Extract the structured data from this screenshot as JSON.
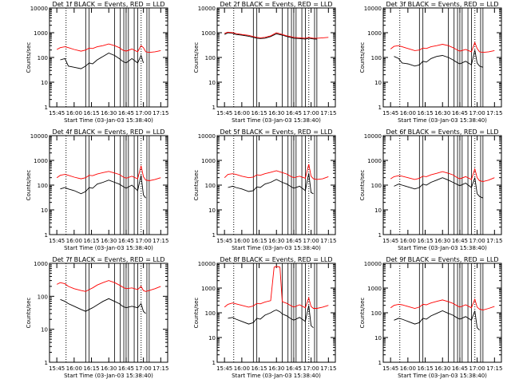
{
  "figure": {
    "background": "#ffffff",
    "axis_color": "#000000",
    "events_color": "#000000",
    "lld_color": "#ff0000"
  },
  "chart_data": [
    {
      "type": "line",
      "title": "Det 1f BLACK = Events, RED = LLD",
      "xlabel": "Start Time (03-Jan-03 15:38:40)",
      "ylabel": "Counts/sec",
      "yscale": "log",
      "ylim": [
        1,
        10000
      ],
      "x_ticks": [
        "15:45",
        "16:00",
        "16:15",
        "16:30",
        "16:45",
        "17:00",
        "17:15"
      ],
      "y_ticks": [
        "1",
        "10",
        "100",
        "1000",
        "10000"
      ],
      "times": [
        "15:39",
        "15:45",
        "15:48",
        "15:52",
        "15:55",
        "16:00",
        "16:06",
        "16:10",
        "16:13",
        "16:16",
        "16:20",
        "16:25",
        "16:30",
        "16:35",
        "16:39",
        "16:42",
        "16:45",
        "16:50",
        "16:55",
        "16:58",
        "17:00",
        "17:02",
        "17:05",
        "17:10",
        "17:15"
      ],
      "series": [
        {
          "name": "Events",
          "color": "#000000",
          "values": [
            null,
            null,
            80,
            90,
            45,
            40,
            35,
            45,
            60,
            55,
            80,
            110,
            150,
            120,
            90,
            70,
            60,
            90,
            60,
            120,
            60,
            null,
            null,
            null,
            null
          ]
        },
        {
          "name": "LLD",
          "color": "#ff0000",
          "values": [
            null,
            210,
            250,
            270,
            250,
            210,
            180,
            200,
            240,
            230,
            270,
            300,
            350,
            300,
            250,
            200,
            180,
            220,
            170,
            300,
            250,
            170,
            160,
            170,
            190
          ]
        }
      ]
    },
    {
      "type": "line",
      "title": "Det 2f BLACK = Events, RED = LLD",
      "xlabel": "Start Time (03-Jan-03 15:38:40)",
      "ylabel": "Counts/sec",
      "yscale": "log",
      "ylim": [
        1,
        10000
      ],
      "x_ticks": [
        "15:45",
        "16:00",
        "16:15",
        "16:30",
        "16:45",
        "17:00",
        "17:15"
      ],
      "y_ticks": [
        "1",
        "10",
        "100",
        "1000",
        "10000"
      ],
      "times": [
        "15:39",
        "15:45",
        "15:48",
        "15:52",
        "15:55",
        "16:00",
        "16:06",
        "16:10",
        "16:13",
        "16:16",
        "16:20",
        "16:25",
        "16:30",
        "16:35",
        "16:39",
        "16:42",
        "16:45",
        "16:50",
        "16:55",
        "16:58",
        "17:00",
        "17:02",
        "17:05",
        "17:10",
        "17:15"
      ],
      "series": [
        {
          "name": "Events",
          "color": "#000000",
          "values": [
            null,
            850,
            1000,
            950,
            850,
            800,
            720,
            650,
            600,
            580,
            600,
            700,
            900,
            800,
            700,
            650,
            600,
            580,
            550,
            600,
            580,
            560,
            550,
            null,
            null
          ]
        },
        {
          "name": "LLD",
          "color": "#ff0000",
          "values": [
            null,
            950,
            1050,
            1000,
            920,
            850,
            780,
            700,
            650,
            620,
            650,
            750,
            1000,
            850,
            750,
            700,
            650,
            620,
            600,
            650,
            620,
            600,
            600,
            620,
            650
          ]
        }
      ]
    },
    {
      "type": "line",
      "title": "Det 3f BLACK = Events, RED = LLD",
      "xlabel": "Start Time (03-Jan-03 15:38:40)",
      "ylabel": "Counts/sec",
      "yscale": "log",
      "ylim": [
        1,
        10000
      ],
      "x_ticks": [
        "15:45",
        "16:00",
        "16:15",
        "16:30",
        "16:45",
        "17:00",
        "17:15"
      ],
      "y_ticks": [
        "1",
        "10",
        "100",
        "1000",
        "10000"
      ],
      "times": [
        "15:39",
        "15:45",
        "15:48",
        "15:52",
        "15:55",
        "16:00",
        "16:06",
        "16:10",
        "16:13",
        "16:16",
        "16:20",
        "16:25",
        "16:30",
        "16:35",
        "16:39",
        "16:42",
        "16:45",
        "16:50",
        "16:55",
        "16:58",
        "17:00",
        "17:02",
        "17:05",
        "17:10",
        "17:15"
      ],
      "series": [
        {
          "name": "Events",
          "color": "#000000",
          "values": [
            null,
            null,
            110,
            90,
            60,
            55,
            45,
            50,
            70,
            65,
            90,
            110,
            120,
            100,
            80,
            65,
            55,
            70,
            50,
            200,
            60,
            45,
            40,
            null,
            null
          ]
        },
        {
          "name": "LLD",
          "color": "#ff0000",
          "values": [
            null,
            220,
            280,
            300,
            270,
            230,
            190,
            200,
            240,
            230,
            270,
            300,
            340,
            300,
            250,
            210,
            180,
            210,
            170,
            400,
            230,
            170,
            160,
            170,
            190
          ]
        }
      ]
    },
    {
      "type": "line",
      "title": "Det 4f BLACK = Events, RED = LLD",
      "xlabel": "Start Time (03-Jan-03 15:38:40)",
      "ylabel": "Counts/sec",
      "yscale": "log",
      "ylim": [
        1,
        10000
      ],
      "x_ticks": [
        "15:45",
        "16:00",
        "16:15",
        "16:30",
        "16:45",
        "17:00",
        "17:15"
      ],
      "y_ticks": [
        "1",
        "10",
        "100",
        "1000",
        "10000"
      ],
      "times": [
        "15:39",
        "15:45",
        "15:48",
        "15:52",
        "15:55",
        "16:00",
        "16:06",
        "16:10",
        "16:13",
        "16:16",
        "16:20",
        "16:25",
        "16:30",
        "16:35",
        "16:39",
        "16:42",
        "16:45",
        "16:50",
        "16:55",
        "16:58",
        "17:00",
        "17:02",
        "17:05",
        "17:10",
        "17:15"
      ],
      "series": [
        {
          "name": "Events",
          "color": "#000000",
          "values": [
            null,
            null,
            70,
            80,
            70,
            60,
            45,
            55,
            80,
            75,
            110,
            130,
            160,
            130,
            110,
            90,
            75,
            100,
            60,
            250,
            40,
            30,
            null,
            null,
            null
          ]
        },
        {
          "name": "LLD",
          "color": "#ff0000",
          "values": [
            null,
            200,
            250,
            270,
            250,
            210,
            180,
            200,
            250,
            240,
            280,
            320,
            360,
            310,
            270,
            220,
            190,
            230,
            180,
            600,
            220,
            160,
            150,
            170,
            200
          ]
        }
      ]
    },
    {
      "type": "line",
      "title": "Det 5f BLACK = Events, RED = LLD",
      "xlabel": "Start Time (03-Jan-03 15:38:40)",
      "ylabel": "Counts/sec",
      "yscale": "log",
      "ylim": [
        1,
        10000
      ],
      "x_ticks": [
        "15:45",
        "16:00",
        "16:15",
        "16:30",
        "16:45",
        "17:00",
        "17:15"
      ],
      "y_ticks": [
        "1",
        "10",
        "100",
        "1000",
        "10000"
      ],
      "times": [
        "15:39",
        "15:45",
        "15:48",
        "15:52",
        "15:55",
        "16:00",
        "16:06",
        "16:10",
        "16:13",
        "16:16",
        "16:20",
        "16:25",
        "16:30",
        "16:35",
        "16:39",
        "16:42",
        "16:45",
        "16:50",
        "16:55",
        "16:58",
        "17:00",
        "17:02",
        "17:05",
        "17:10",
        "17:15"
      ],
      "series": [
        {
          "name": "Events",
          "color": "#000000",
          "values": [
            null,
            null,
            80,
            90,
            80,
            70,
            55,
            60,
            85,
            80,
            110,
            130,
            170,
            130,
            110,
            90,
            75,
            90,
            60,
            300,
            50,
            45,
            null,
            null,
            null
          ]
        },
        {
          "name": "LLD",
          "color": "#ff0000",
          "values": [
            null,
            200,
            270,
            290,
            270,
            230,
            200,
            210,
            260,
            250,
            290,
            330,
            380,
            320,
            280,
            230,
            200,
            230,
            190,
            700,
            230,
            180,
            170,
            180,
            220
          ]
        }
      ]
    },
    {
      "type": "line",
      "title": "Det 6f BLACK = Events, RED = LLD",
      "xlabel": "Start Time (03-Jan-03 15:38:40)",
      "ylabel": "Counts/sec",
      "yscale": "log",
      "ylim": [
        1,
        10000
      ],
      "x_ticks": [
        "15:45",
        "16:00",
        "16:15",
        "16:30",
        "16:45",
        "17:00",
        "17:15"
      ],
      "y_ticks": [
        "1",
        "10",
        "100",
        "1000",
        "10000"
      ],
      "times": [
        "15:39",
        "15:45",
        "15:48",
        "15:52",
        "15:55",
        "16:00",
        "16:06",
        "16:10",
        "16:13",
        "16:16",
        "16:20",
        "16:25",
        "16:30",
        "16:35",
        "16:39",
        "16:42",
        "16:45",
        "16:50",
        "16:55",
        "16:58",
        "17:00",
        "17:02",
        "17:05",
        "17:10",
        "17:15"
      ],
      "series": [
        {
          "name": "Events",
          "color": "#000000",
          "values": [
            null,
            null,
            90,
            110,
            100,
            85,
            70,
            80,
            110,
            100,
            130,
            160,
            200,
            160,
            130,
            110,
            95,
            120,
            80,
            200,
            45,
            35,
            30,
            null,
            null
          ]
        },
        {
          "name": "LLD",
          "color": "#ff0000",
          "values": [
            null,
            180,
            220,
            240,
            230,
            200,
            170,
            190,
            230,
            220,
            260,
            300,
            350,
            300,
            260,
            210,
            180,
            220,
            170,
            450,
            200,
            150,
            140,
            160,
            200
          ]
        }
      ]
    },
    {
      "type": "line",
      "title": "Det 7f BLACK = Events, RED = LLD",
      "xlabel": "Start Time (03-Jan-03 15:38:40)",
      "ylabel": "Counts/sec",
      "yscale": "log",
      "ylim": [
        1,
        1000
      ],
      "x_ticks": [
        "15:45",
        "16:00",
        "16:15",
        "16:30",
        "16:45",
        "17:00",
        "17:15"
      ],
      "y_ticks": [
        "1",
        "10",
        "100",
        "1000"
      ],
      "times": [
        "15:39",
        "15:45",
        "15:48",
        "15:52",
        "15:55",
        "16:00",
        "16:06",
        "16:10",
        "16:13",
        "16:16",
        "16:20",
        "16:25",
        "16:30",
        "16:35",
        "16:39",
        "16:42",
        "16:45",
        "16:50",
        "16:55",
        "16:58",
        "17:00",
        "17:02",
        "17:05",
        "17:10",
        "17:15"
      ],
      "series": [
        {
          "name": "Events",
          "color": "#000000",
          "values": [
            null,
            null,
            80,
            70,
            60,
            50,
            40,
            35,
            40,
            45,
            55,
            70,
            85,
            70,
            60,
            50,
            45,
            50,
            45,
            60,
            35,
            30,
            null,
            null,
            null
          ]
        },
        {
          "name": "LLD",
          "color": "#ff0000",
          "values": [
            null,
            230,
            260,
            240,
            200,
            170,
            150,
            140,
            160,
            180,
            220,
            260,
            300,
            260,
            220,
            190,
            170,
            180,
            160,
            200,
            150,
            140,
            150,
            170,
            200
          ]
        }
      ]
    },
    {
      "type": "line",
      "title": "Det 8f BLACK = Events, RED = LLD",
      "xlabel": "Start Time (03-Jan-03 15:38:40)",
      "ylabel": "Counts/sec",
      "yscale": "log",
      "ylim": [
        1,
        10000
      ],
      "x_ticks": [
        "15:45",
        "16:00",
        "16:15",
        "16:30",
        "16:45",
        "17:00",
        "17:15"
      ],
      "y_ticks": [
        "1",
        "10",
        "100",
        "1000",
        "10000"
      ],
      "times": [
        "15:39",
        "15:45",
        "15:48",
        "15:52",
        "15:55",
        "16:00",
        "16:06",
        "16:10",
        "16:13",
        "16:16",
        "16:20",
        "16:25",
        "16:28",
        "16:30",
        "16:33",
        "16:35",
        "16:39",
        "16:42",
        "16:45",
        "16:50",
        "16:55",
        "16:58",
        "17:00",
        "17:02",
        "17:05",
        "17:10",
        "17:15"
      ],
      "series": [
        {
          "name": "Events",
          "color": "#000000",
          "values": [
            null,
            null,
            60,
            65,
            55,
            45,
            35,
            40,
            60,
            55,
            80,
            100,
            120,
            130,
            110,
            90,
            75,
            60,
            50,
            65,
            45,
            200,
            30,
            25,
            null,
            null,
            null
          ]
        },
        {
          "name": "LLD",
          "color": "#ff0000",
          "values": [
            null,
            170,
            220,
            250,
            230,
            200,
            170,
            190,
            240,
            230,
            270,
            310,
            7000,
            7500,
            7000,
            280,
            240,
            200,
            170,
            210,
            160,
            400,
            180,
            150,
            150,
            170,
            200
          ]
        }
      ]
    },
    {
      "type": "line",
      "title": "Det 9f BLACK = Events, RED = LLD",
      "xlabel": "Start Time (03-Jan-03 15:38:40)",
      "ylabel": "Counts/sec",
      "yscale": "log",
      "ylim": [
        1,
        10000
      ],
      "x_ticks": [
        "15:45",
        "16:00",
        "16:15",
        "16:30",
        "16:45",
        "17:00",
        "17:15"
      ],
      "y_ticks": [
        "1",
        "10",
        "100",
        "1000",
        "10000"
      ],
      "times": [
        "15:39",
        "15:45",
        "15:48",
        "15:52",
        "15:55",
        "16:00",
        "16:06",
        "16:10",
        "16:13",
        "16:16",
        "16:20",
        "16:25",
        "16:30",
        "16:35",
        "16:39",
        "16:42",
        "16:45",
        "16:50",
        "16:55",
        "16:58",
        "17:00",
        "17:02",
        "17:05",
        "17:10",
        "17:15"
      ],
      "series": [
        {
          "name": "Events",
          "color": "#000000",
          "values": [
            null,
            null,
            50,
            60,
            55,
            45,
            35,
            40,
            60,
            55,
            75,
            95,
            120,
            95,
            80,
            65,
            55,
            70,
            50,
            120,
            25,
            20,
            null,
            null,
            null
          ]
        },
        {
          "name": "LLD",
          "color": "#ff0000",
          "values": [
            null,
            160,
            200,
            220,
            210,
            180,
            150,
            170,
            220,
            210,
            250,
            290,
            330,
            280,
            240,
            200,
            170,
            210,
            160,
            350,
            170,
            140,
            130,
            150,
            180
          ]
        }
      ]
    }
  ]
}
